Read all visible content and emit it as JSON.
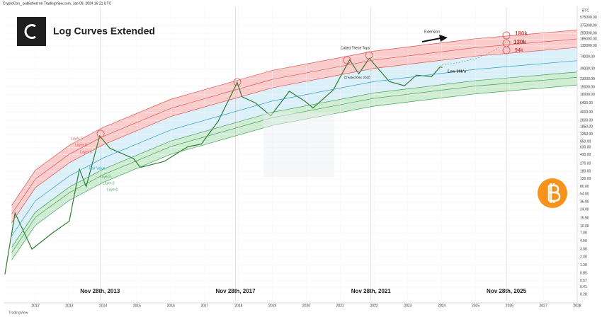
{
  "chart_data": {
    "type": "line",
    "header": "CryptoCon_ published on TradingView.com, Jan 09, 2024 16:21 UTC",
    "title": "Log Curves Extended",
    "ylabel": "BTC",
    "footer": "TradingView",
    "log": true,
    "grid": true,
    "xlim": [
      2011.06,
      2028.0
    ],
    "xticks": [
      2012,
      2013,
      2014,
      2015,
      2016,
      2017,
      2018,
      2019,
      2020,
      2021,
      2022,
      2023,
      2024,
      2025,
      2026,
      2027,
      2028
    ],
    "ylim": [
      0.2,
      1000000
    ],
    "yticks": [
      {
        "value": 575000,
        "label": "575000.00"
      },
      {
        "value": 375000,
        "label": "375000.00"
      },
      {
        "value": 250000,
        "label": "250000.00"
      },
      {
        "value": 185000,
        "label": "185000.00"
      },
      {
        "value": 130000,
        "label": "130000.00"
      },
      {
        "value": 74000,
        "label": "74000.00"
      },
      {
        "value": 39000,
        "label": "39000.00"
      },
      {
        "value": 23000,
        "label": "23000.00"
      },
      {
        "value": 15000,
        "label": "15000.00"
      },
      {
        "value": 10000,
        "label": "10000.00"
      },
      {
        "value": 6400,
        "label": "6400.00"
      },
      {
        "value": 4000,
        "label": "4000.00"
      },
      {
        "value": 2600,
        "label": "2600.00"
      },
      {
        "value": 1850,
        "label": "1850.00"
      },
      {
        "value": 1250,
        "label": "1250.00"
      },
      {
        "value": 850,
        "label": "850.00"
      },
      {
        "value": 630,
        "label": "630.00"
      },
      {
        "value": 430,
        "label": "430.00"
      },
      {
        "value": 270,
        "label": "270.00"
      },
      {
        "value": 180,
        "label": "180.00"
      },
      {
        "value": 120,
        "label": "120.00"
      },
      {
        "value": 80,
        "label": "80.00"
      },
      {
        "value": 54,
        "label": "54.00"
      },
      {
        "value": 36,
        "label": "36.00"
      },
      {
        "value": 24,
        "label": "24.00"
      },
      {
        "value": 15.5,
        "label": "15.50"
      },
      {
        "value": 10,
        "label": "10.00"
      },
      {
        "value": 7,
        "label": "7.00"
      },
      {
        "value": 4.6,
        "label": "4.60"
      },
      {
        "value": 3,
        "label": "3.00"
      },
      {
        "value": 2,
        "label": "2.00"
      },
      {
        "value": 1.3,
        "label": "1.30"
      },
      {
        "value": 0.85,
        "label": "0.85"
      },
      {
        "value": 0.57,
        "label": "0.57"
      },
      {
        "value": 0.41,
        "label": "0.41"
      },
      {
        "value": 0.28,
        "label": "0.28"
      }
    ],
    "series": [
      {
        "color": "#2e7d32",
        "x": [
          2011.1,
          2011.4,
          2011.9,
          2012.5,
          2013.0,
          2013.3,
          2013.5,
          2013.9,
          2014.2,
          2014.9,
          2015.1,
          2015.8,
          2016.5,
          2016.9,
          2017.4,
          2017.96,
          2018.1,
          2018.5,
          2018.95,
          2019.5,
          2019.95,
          2020.2,
          2020.8,
          2021.28,
          2021.55,
          2021.86,
          2022.45,
          2022.9,
          2023.25,
          2023.7,
          2023.95,
          2024.02
        ],
        "values": [
          0.8,
          20,
          3,
          7,
          13,
          200,
          80,
          1150,
          600,
          350,
          220,
          300,
          650,
          750,
          2500,
          19000,
          9000,
          6500,
          3300,
          12000,
          7200,
          5000,
          13000,
          63000,
          30000,
          68000,
          20000,
          16000,
          28000,
          26000,
          43000,
          42000
        ]
      },
      {
        "name": "Layer 7",
        "color": "#e05252",
        "x": [
          2011.3,
          2012,
          2013,
          2014,
          2016,
          2019,
          2022,
          2025,
          2028
        ],
        "values": [
          30,
          190,
          700,
          1800,
          7900,
          36000,
          99000,
          190000,
          300000
        ]
      },
      {
        "name": "Layer 6",
        "color": "#e05252",
        "x": [
          2011.3,
          2012,
          2013,
          2014,
          2016,
          2019,
          2022,
          2025,
          2028
        ],
        "values": [
          19,
          119,
          440,
          1120,
          4900,
          22500,
          62000,
          119000,
          188000
        ]
      },
      {
        "name": "Layer 5",
        "color": "#e05252",
        "x": [
          2011.3,
          2012,
          2013,
          2014,
          2016,
          2019,
          2022,
          2025,
          2028
        ],
        "values": [
          12,
          76,
          280,
          720,
          3200,
          14400,
          40000,
          76000,
          120000
        ]
      },
      {
        "name": "Fair Value",
        "color": "#2aa0c8",
        "x": [
          2011.3,
          2012,
          2013,
          2014,
          2016,
          2019,
          2022,
          2025,
          2028
        ],
        "values": [
          6,
          38,
          140,
          360,
          1580,
          7200,
          20000,
          38000,
          60000
        ]
      },
      {
        "name": "Layer3",
        "color": "#3aa35a",
        "x": [
          2011.3,
          2012,
          2013,
          2014,
          2016,
          2019,
          2022,
          2025,
          2028
        ],
        "values": [
          3.3,
          21,
          78,
          200,
          880,
          4000,
          11000,
          21000,
          33000
        ]
      },
      {
        "name": "Layer 2",
        "color": "#3aa35a",
        "x": [
          2011.3,
          2012,
          2013,
          2014,
          2016,
          2019,
          2022,
          2025,
          2028
        ],
        "values": [
          2.5,
          16,
          58,
          150,
          660,
          3000,
          8300,
          15800,
          25000
        ]
      },
      {
        "name": "Layer1",
        "color": "#3aa35a",
        "x": [
          2011.3,
          2012,
          2013,
          2014,
          2016,
          2019,
          2022,
          2025,
          2028
        ],
        "values": [
          1.7,
          10.5,
          39,
          100,
          440,
          2000,
          5500,
          10500,
          16700
        ]
      }
    ],
    "events": [
      {
        "x": 2013.91,
        "label": "Nov 28th, 2013"
      },
      {
        "x": 2017.91,
        "label": "Nov 28th, 2017"
      },
      {
        "x": 2021.91,
        "label": "Nov 28th, 2021"
      },
      {
        "x": 2025.91,
        "label": "Nov 28th, 2025"
      }
    ],
    "annotations": [
      "Called These Tops",
      "Extension",
      "Created Dec 2020",
      "Low 30k's",
      "180k",
      "130k",
      "94k"
    ]
  }
}
